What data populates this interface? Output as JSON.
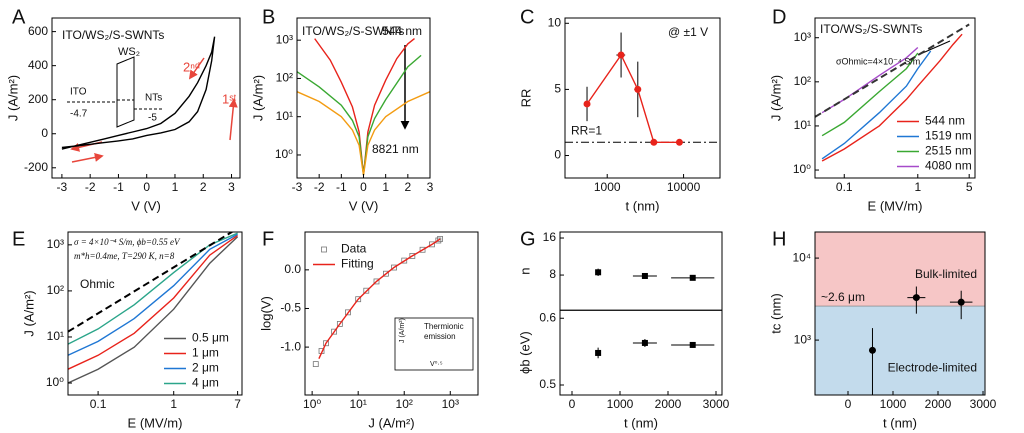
{
  "chart_data": [
    {
      "type": "line",
      "label": "A",
      "xlabel": "V (V)",
      "ylabel": "J (A/m²)",
      "xlim": [
        -3.35,
        3.3
      ],
      "ylim": [
        -260,
        680
      ],
      "xticks": [
        -3,
        -2,
        -1,
        0,
        1,
        2,
        3
      ],
      "yticks": [
        -200,
        0,
        200,
        400,
        600
      ],
      "series": [
        {
          "color": "#000000",
          "line": "solid",
          "x": [
            -3,
            -2.5,
            -2,
            -1.5,
            -1,
            -0.5,
            0,
            0.5,
            1,
            1.5,
            1.8,
            2.1,
            2.3,
            2.4,
            2.3,
            2.1,
            1.8,
            1.5,
            1,
            0.5,
            0,
            -0.5,
            -1,
            -1.5,
            -2,
            -2.5,
            -3
          ],
          "values": [
            -80,
            -72,
            -62,
            -52,
            -42,
            -30,
            -10,
            5,
            25,
            70,
            130,
            260,
            430,
            570,
            480,
            400,
            300,
            220,
            120,
            60,
            30,
            10,
            -10,
            -30,
            -50,
            -70,
            -90
          ]
        }
      ],
      "annotations": [
        "ITO/WS₂/S-SWNTs",
        "WS₂",
        "ITO",
        "-4.7",
        "NTs",
        "-5",
        "2ⁿᵈ",
        "1ˢᵗ"
      ]
    },
    {
      "type": "line",
      "label": "B",
      "xlabel": "V (V)",
      "ylabel": "J (A/m²)",
      "ylog": true,
      "xlim": [
        -3,
        3
      ],
      "ylim": [
        0.25,
        3800
      ],
      "xticks": [
        -3,
        -2,
        -1,
        0,
        1,
        2,
        3
      ],
      "yticks": [
        {
          "value": 1,
          "label": "10⁰"
        },
        {
          "value": 10,
          "label": "10¹"
        },
        {
          "value": 100,
          "label": "10²"
        },
        {
          "value": 1000,
          "label": "10³"
        }
      ],
      "series": [
        {
          "color": "#e8231b",
          "line": "solid",
          "x": [
            -2.2,
            -1.5,
            -1,
            -0.5,
            -0.2,
            0,
            0.2,
            0.5,
            1,
            1.5,
            2,
            2.3
          ],
          "values": [
            1100,
            300,
            80,
            18,
            4,
            0.3,
            4,
            20,
            90,
            330,
            800,
            1100
          ]
        },
        {
          "color": "#3aa832",
          "line": "solid",
          "x": [
            -3,
            -2,
            -1,
            -0.5,
            -0.2,
            0,
            0.2,
            0.5,
            1,
            2,
            2.6
          ],
          "values": [
            150,
            60,
            20,
            8,
            3,
            0.3,
            3,
            9,
            28,
            200,
            400
          ]
        },
        {
          "color": "#f39c12",
          "line": "solid",
          "x": [
            -3,
            -2,
            -1,
            -0.5,
            -0.2,
            0,
            0.2,
            0.5,
            1,
            2,
            3
          ],
          "values": [
            45,
            25,
            10,
            4.5,
            1.8,
            0.3,
            1.8,
            4.5,
            10,
            25,
            45
          ]
        }
      ],
      "annotations": [
        "ITO/WS₂/S-SWNTs",
        "544 nm",
        "8821 nm"
      ]
    },
    {
      "type": "line",
      "label": "C",
      "xlabel": "t (nm)",
      "ylabel": "RR",
      "xlog": true,
      "xlim": [
        280,
        30000
      ],
      "ylim": [
        -1.7,
        10.4
      ],
      "xticks": [
        1000,
        10000
      ],
      "yticks": [
        0,
        5,
        10
      ],
      "refline": 1,
      "refline_label": "RR=1",
      "series": [
        {
          "color": "#e8231b",
          "line": "solid",
          "marker": "circle",
          "x": [
            544,
            1519,
            2515,
            4080,
            8821
          ],
          "values": [
            3.9,
            7.6,
            5.0,
            1.0,
            1.0
          ],
          "errors": [
            1.3,
            1.7,
            2.1,
            0,
            0
          ],
          "xerrors": [
            0,
            200,
            250,
            0,
            0
          ]
        }
      ],
      "annotations": [
        "@ ±1 V"
      ]
    },
    {
      "type": "line",
      "label": "D",
      "xlabel": "E (MV/m)",
      "ylabel": "J (A/m²)",
      "xlog": true,
      "ylog": true,
      "xlim": [
        0.04,
        6
      ],
      "ylim": [
        0.66,
        2800
      ],
      "xticks": [
        0.1,
        1,
        5
      ],
      "yticks": [
        {
          "value": 1,
          "label": "10⁰"
        },
        {
          "value": 10,
          "label": "10¹"
        },
        {
          "value": 100,
          "label": "10²"
        },
        {
          "value": 1000,
          "label": "10³"
        }
      ],
      "legend": "lower right",
      "series": [
        {
          "name": "544 nm",
          "color": "#e8231b",
          "line": "solid",
          "x": [
            0.05,
            0.1,
            0.3,
            0.7,
            1,
            2,
            3,
            4
          ],
          "values": [
            1.6,
            3,
            10,
            40,
            80,
            300,
            700,
            1200
          ]
        },
        {
          "name": "1519 nm",
          "color": "#1f77d4",
          "line": "solid",
          "x": [
            0.05,
            0.1,
            0.3,
            0.7,
            1,
            1.5
          ],
          "values": [
            1.8,
            4,
            20,
            80,
            200,
            500
          ]
        },
        {
          "name": "2515 nm",
          "color": "#3aa832",
          "line": "solid",
          "x": [
            0.05,
            0.1,
            0.3,
            0.7,
            1
          ],
          "values": [
            6,
            12,
            60,
            200,
            450
          ]
        },
        {
          "name": "4080 nm",
          "color": "#a64ac9",
          "line": "solid",
          "x": [
            0.05,
            0.1,
            0.3,
            0.7,
            1
          ],
          "values": [
            20,
            40,
            140,
            350,
            600
          ]
        },
        {
          "color": "#333333",
          "line": "dashed",
          "x": [
            0.04,
            5
          ],
          "values": [
            16,
            2000
          ]
        }
      ],
      "annotations": [
        "ITO/WS₂/S-SWNTs",
        "σOhmic=4×10⁻⁴ S/m"
      ]
    },
    {
      "type": "line",
      "label": "E",
      "xlabel": "E (MV/m)",
      "ylabel": "J (A/m²)",
      "xlog": true,
      "ylog": true,
      "xlim": [
        0.04,
        8
      ],
      "ylim": [
        0.55,
        1900
      ],
      "xticks": [
        0.1,
        1,
        7
      ],
      "yticks": [
        {
          "value": 1,
          "label": "10⁰"
        },
        {
          "value": 10,
          "label": "10¹"
        },
        {
          "value": 100,
          "label": "10²"
        },
        {
          "value": 1000,
          "label": "10³"
        }
      ],
      "legend": "lower right",
      "series": [
        {
          "name": "0.5 μm",
          "color": "#555555",
          "line": "solid",
          "x": [
            0.04,
            0.1,
            0.3,
            1,
            3,
            7
          ],
          "values": [
            1,
            2,
            6,
            40,
            400,
            1500
          ]
        },
        {
          "name": "1 μm",
          "color": "#e8231b",
          "line": "solid",
          "x": [
            0.04,
            0.1,
            0.3,
            1,
            3,
            7
          ],
          "values": [
            2,
            4,
            12,
            70,
            600,
            1600
          ]
        },
        {
          "name": "2 μm",
          "color": "#1f77d4",
          "line": "solid",
          "x": [
            0.04,
            0.1,
            0.3,
            1,
            3,
            7
          ],
          "values": [
            4,
            8,
            25,
            130,
            800,
            1700
          ]
        },
        {
          "name": "4 μm",
          "color": "#2ba58a",
          "line": "solid",
          "x": [
            0.04,
            0.1,
            0.3,
            1,
            3,
            7
          ],
          "values": [
            7,
            15,
            50,
            250,
            1000,
            1800
          ]
        },
        {
          "color": "#000000",
          "line": "dashed",
          "x": [
            0.04,
            6
          ],
          "values": [
            13,
            1950
          ]
        }
      ],
      "annotations": [
        "σ = 4×10⁻⁴ S/m, ϕb=0.55 eV",
        "m*h=0.4me, T=290 K, n=8",
        "Ohmic"
      ]
    },
    {
      "type": "line",
      "label": "F",
      "xlabel": "J (A/m²)",
      "ylabel": "log(V)",
      "xlog": true,
      "xlim": [
        0.7,
        4000
      ],
      "ylim": [
        -1.62,
        0.49
      ],
      "xticks": [
        {
          "value": 1,
          "label": "10⁰"
        },
        {
          "value": 10,
          "label": "10¹"
        },
        {
          "value": 100,
          "label": "10²"
        },
        {
          "value": 1000,
          "label": "10³"
        }
      ],
      "yticks": [
        {
          "value": -1,
          "label": "-1.0"
        },
        -0.5,
        {
          "value": 0,
          "label": "0.0"
        }
      ],
      "legend": "upper left",
      "series": [
        {
          "name": "Data",
          "color": "#777777",
          "line": "none",
          "marker": "open-square",
          "x": [
            1.2,
            1.6,
            2,
            3,
            4,
            6,
            10,
            15,
            25,
            40,
            60,
            100,
            150,
            250,
            400,
            550,
            600
          ],
          "values": [
            -1.22,
            -1.05,
            -0.95,
            -0.8,
            -0.7,
            -0.55,
            -0.38,
            -0.27,
            -0.15,
            -0.05,
            0.03,
            0.12,
            0.18,
            0.26,
            0.33,
            0.38,
            0.4
          ]
        },
        {
          "name": "Fitting",
          "color": "#e8231b",
          "line": "solid",
          "x": [
            1.4,
            2,
            4,
            10,
            25,
            60,
            150,
            400,
            600
          ],
          "values": [
            -1.15,
            -0.95,
            -0.7,
            -0.38,
            -0.15,
            0.03,
            0.18,
            0.33,
            0.4
          ]
        }
      ],
      "annotations": [
        "Thermionic",
        "emission",
        "J (A/m²)",
        "V⁰·⁵"
      ]
    },
    {
      "type": "stack",
      "label": "G",
      "xlabel": "t (nm)",
      "xlim": [
        -250,
        3125
      ],
      "xticks": [
        0,
        1000,
        2000,
        3000
      ],
      "x": [
        544,
        1519,
        2515
      ],
      "xerrors": [
        0,
        250,
        450
      ],
      "subplots": [
        {
          "ylabel": "n",
          "ylim": [
            0.4,
            17.3
          ],
          "yticks": [
            8,
            16
          ],
          "values": [
            8.6,
            7.8,
            7.4
          ],
          "errors": [
            0.8,
            0.6,
            0.3
          ]
        },
        {
          "ylabel": "ϕb (eV)",
          "ylim": [
            0.485,
            0.612
          ],
          "yticks": [
            0.5,
            0.6
          ],
          "values": [
            0.548,
            0.563,
            0.56
          ],
          "errors": [
            0.008,
            0.006,
            0.004
          ]
        }
      ]
    },
    {
      "type": "line",
      "label": "H",
      "xlabel": "t (nm)",
      "ylabel": "tc (nm)",
      "ylog": true,
      "xlim": [
        -733,
        3044
      ],
      "ylim": [
        214,
        20800
      ],
      "xticks": [
        0,
        1000,
        2000,
        3000
      ],
      "yticks": [
        {
          "value": 1000,
          "label": "10³"
        },
        {
          "value": 10000,
          "label": "10⁴"
        }
      ],
      "threshold": 2600,
      "threshold_label": "~2.6 μm",
      "regions": [
        {
          "text": "Bulk-limited",
          "color": "#f6c6c6"
        },
        {
          "text": "Electrode-limited",
          "color": "#c3dbec"
        }
      ],
      "series": [
        {
          "color": "#000000",
          "line": "none",
          "marker": "circle",
          "x": [
            544,
            1519,
            2515
          ],
          "values": [
            750,
            3300,
            2900
          ],
          "errors": [
            650,
            1200,
            1100
          ],
          "xerrors": [
            0,
            200,
            250
          ]
        }
      ]
    }
  ]
}
